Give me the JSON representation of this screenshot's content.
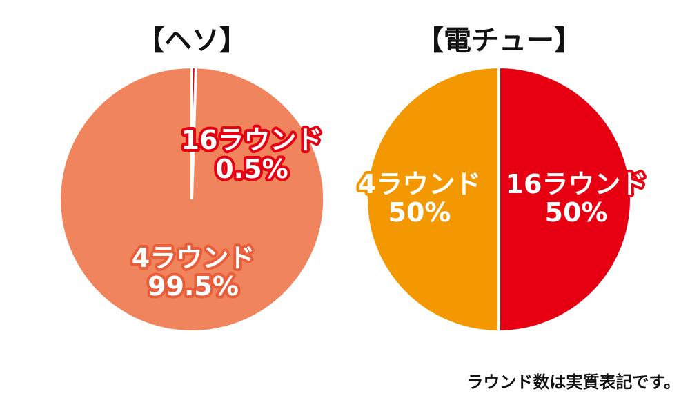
{
  "chart_data": [
    {
      "type": "pie",
      "title": "【ヘソ】",
      "start": "top",
      "direction": "clockwise",
      "slices": [
        {
          "label": "16ラウンド",
          "value": 0.5,
          "value_text": "0.5%",
          "color": "#e60012",
          "label_stroke": "#e60012"
        },
        {
          "label": "4ラウンド",
          "value": 99.5,
          "value_text": "99.5%",
          "color": "#f0845c",
          "label_stroke": "#e85d3a"
        }
      ]
    },
    {
      "type": "pie",
      "title": "【電チュー】",
      "start": "top",
      "direction": "clockwise",
      "slices": [
        {
          "label": "16ラウンド",
          "value": 50,
          "value_text": "50%",
          "color": "#e60012",
          "label_stroke": "#e60012"
        },
        {
          "label": "4ラウンド",
          "value": 50,
          "value_text": "50%",
          "color": "#f39800",
          "label_stroke": "#f39800"
        }
      ]
    }
  ],
  "footnote": "ラウンド数は実質表記です。"
}
